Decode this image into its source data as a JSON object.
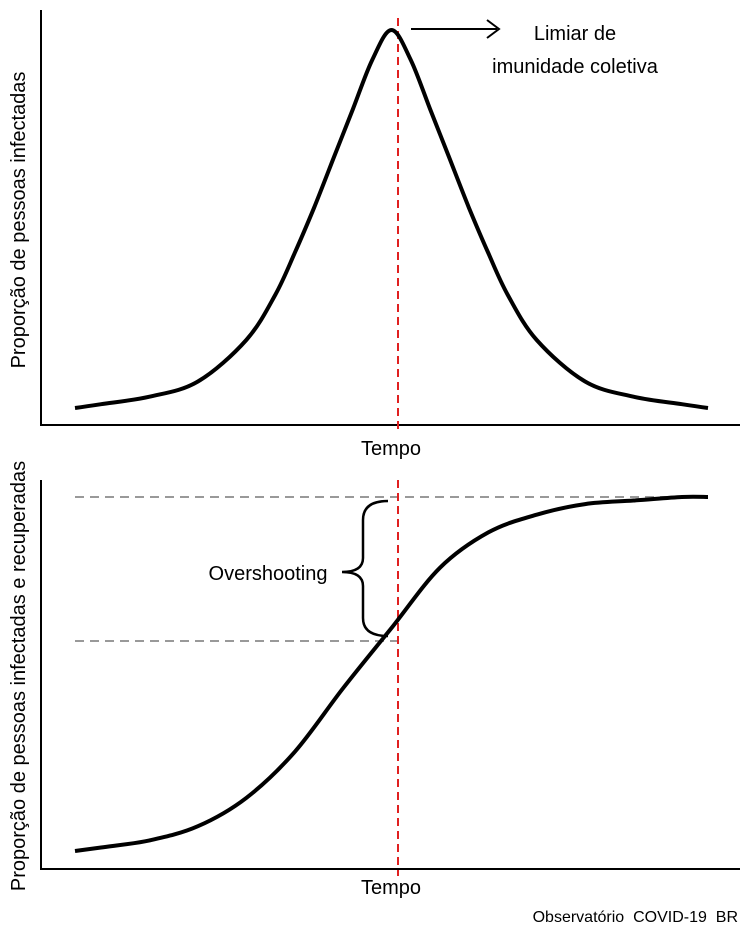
{
  "chart_data": [
    {
      "type": "line",
      "description_curve": "bell",
      "ylabel": "Proporção de pessoas infectadas",
      "xlabel": "Tempo",
      "annotation": {
        "line1": "Limiar de",
        "line2": "imunidade coletiva"
      },
      "x": [
        -3.27,
        -3,
        -2.5,
        -2,
        -1.5,
        -1.2,
        -1,
        -0.8,
        -0.6,
        -0.4,
        -0.2,
        0,
        0.2,
        0.4,
        0.6,
        0.8,
        1,
        1.2,
        1.5,
        2,
        2.5,
        3,
        3.27
      ],
      "y": [
        0.0,
        0.01,
        0.03,
        0.07,
        0.18,
        0.3,
        0.41,
        0.53,
        0.66,
        0.79,
        0.92,
        1.0,
        0.92,
        0.79,
        0.66,
        0.53,
        0.41,
        0.3,
        0.18,
        0.07,
        0.03,
        0.01,
        0.0
      ],
      "threshold_x": 0,
      "xlim": [
        -3.27,
        3.27
      ],
      "ylim": [
        0,
        1
      ]
    },
    {
      "type": "line",
      "description_curve": "sigmoid",
      "ylabel": "Proporção de pessoas infectadas e recuperadas",
      "xlabel": "Tempo",
      "annotation": {
        "text": "Overshooting"
      },
      "x": [
        -3.27,
        -3,
        -2.5,
        -2,
        -1.5,
        -1,
        -0.5,
        0,
        0.5,
        1,
        1.5,
        2,
        2.5,
        3,
        3.27
      ],
      "y": [
        0.0,
        0.01,
        0.03,
        0.07,
        0.15,
        0.28,
        0.46,
        0.63,
        0.8,
        0.9,
        0.95,
        0.98,
        0.99,
        1.0,
        1.0
      ],
      "threshold_x": 0,
      "threshold_y": 0.63,
      "plateau_y": 1.0,
      "xlim": [
        -3.27,
        3.27
      ],
      "ylim": [
        0,
        1
      ]
    }
  ],
  "footer": {
    "credit": "Observatório  COVID-19  BR"
  },
  "colors": {
    "curve": "#000000",
    "threshold": "#e02020",
    "guide": "#999999"
  }
}
